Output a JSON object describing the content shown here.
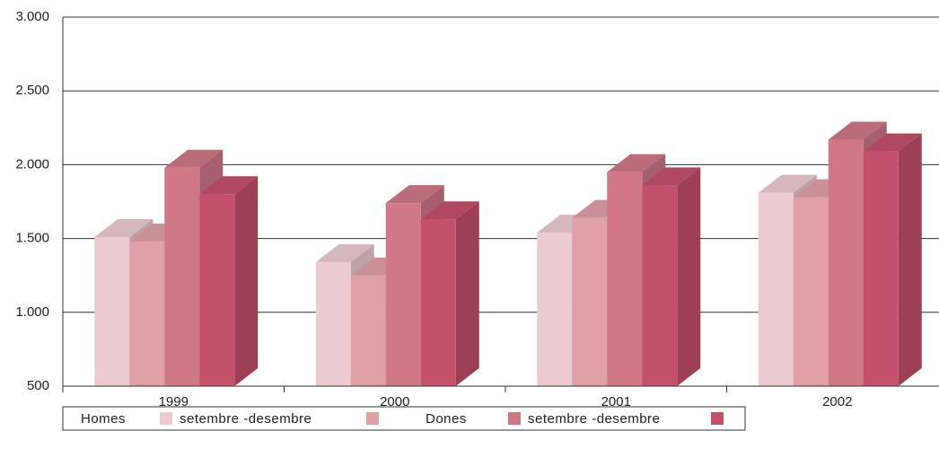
{
  "chart_data": {
    "type": "bar3d",
    "categories": [
      "1999",
      "2000",
      "2001",
      "2002"
    ],
    "series": [
      {
        "name": "Homes",
        "color": "#ecccd0",
        "values": [
          1510,
          1340,
          1540,
          1810
        ]
      },
      {
        "name": "setembre -desembre",
        "color": "#e0a0a8",
        "values": [
          1480,
          1250,
          1640,
          1780
        ]
      },
      {
        "name": "Dones",
        "color": "#d07888",
        "values": [
          1980,
          1740,
          1950,
          2170
        ]
      },
      {
        "name": "setembre -desembre",
        "color": "#c4506c",
        "values": [
          1800,
          1630,
          1860,
          2090
        ]
      }
    ],
    "ylim": [
      500,
      3000
    ],
    "yticks": [
      500,
      {
        "value": 1000,
        "label": "1.000"
      },
      {
        "value": 1500,
        "label": "1.500"
      },
      {
        "value": 2000,
        "label": "2.000"
      },
      {
        "value": 2500,
        "label": "2.500"
      },
      {
        "value": 3000,
        "label": "3.000"
      }
    ],
    "grid": true,
    "legend": "bottom"
  }
}
